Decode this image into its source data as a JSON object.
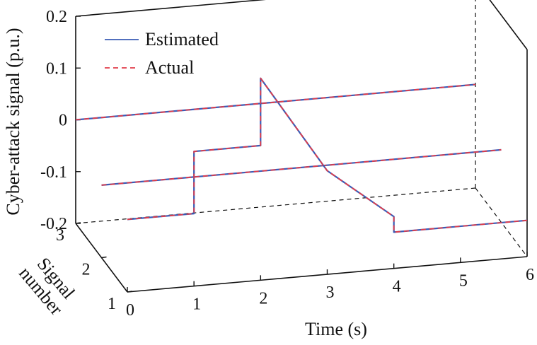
{
  "chart_data": {
    "type": "line",
    "projection": "3d",
    "xlabel": "Time (s)",
    "ylabel": "Signal number",
    "zlabel": "Cyber-attack signal (p.u.)",
    "xlim": [
      0,
      6
    ],
    "ylim": [
      1,
      3
    ],
    "zlim": [
      -0.2,
      0.2
    ],
    "x_ticks": [
      "0",
      "1",
      "2",
      "3",
      "4",
      "5",
      "6"
    ],
    "y_ticks": [
      "1",
      "2",
      "3"
    ],
    "z_ticks": [
      "0.2",
      "0.1",
      "0",
      "-0.1",
      "-0.2"
    ],
    "legend": {
      "position": "top-left",
      "entries": [
        "Estimated",
        "Actual"
      ]
    },
    "colors": {
      "estimated": "#3a5bb5",
      "actual": "#e03c4a",
      "axes": "#111111"
    },
    "signals": [
      {
        "signal": 3,
        "estimated": {
          "x": [
            0,
            6
          ],
          "z": [
            0,
            0
          ]
        },
        "actual": {
          "x": [
            0,
            6
          ],
          "z": [
            0,
            0
          ]
        }
      },
      {
        "signal": 2,
        "estimated": {
          "x": [
            0,
            6
          ],
          "z": [
            -0.06,
            -0.06
          ]
        },
        "actual": {
          "x": [
            0,
            6
          ],
          "z": [
            -0.06,
            -0.06
          ]
        }
      },
      {
        "signal": 1,
        "estimated": {
          "x": [
            0,
            1,
            1,
            2,
            2,
            3,
            4,
            4,
            6
          ],
          "z": [
            -0.06,
            -0.06,
            0.06,
            0.06,
            0.19,
            0.0,
            -0.1,
            -0.13,
            -0.13
          ]
        },
        "actual": {
          "x": [
            0,
            1,
            1,
            2,
            2,
            3,
            4,
            4,
            6
          ],
          "z": [
            -0.06,
            -0.06,
            0.06,
            0.06,
            0.19,
            0.0,
            -0.1,
            -0.13,
            -0.13
          ]
        }
      }
    ]
  }
}
